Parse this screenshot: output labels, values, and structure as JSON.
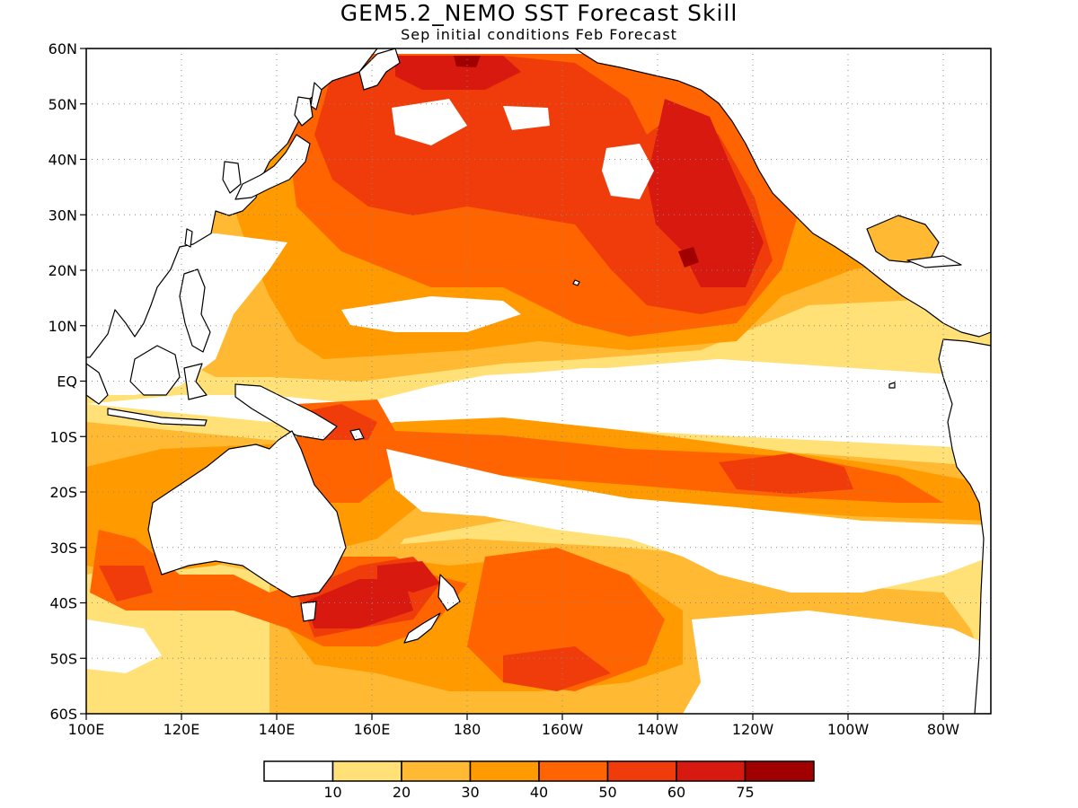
{
  "title": "GEM5.2_NEMO SST Forecast Skill",
  "subtitle": "Sep initial conditions  Feb Forecast",
  "map": {
    "lon_range": [
      100,
      290
    ],
    "lat_range": [
      -60,
      60
    ],
    "lon_labels": [
      "100E",
      "120E",
      "140E",
      "160E",
      "180",
      "160W",
      "140W",
      "120W",
      "100W",
      "80W"
    ],
    "lat_labels": [
      "60N",
      "50N",
      "40N",
      "30N",
      "20N",
      "10N",
      "EQ",
      "10S",
      "20S",
      "30S",
      "40S",
      "50S",
      "60S"
    ],
    "grid": "dotted"
  },
  "colorbar": {
    "colors": [
      "#ffffff",
      "#ffe178",
      "#ffb932",
      "#ff9a00",
      "#ff6400",
      "#f03c0a",
      "#d7190f",
      "#a00000"
    ],
    "labels": [
      "10",
      "20",
      "30",
      "40",
      "50",
      "60",
      "75"
    ]
  }
}
